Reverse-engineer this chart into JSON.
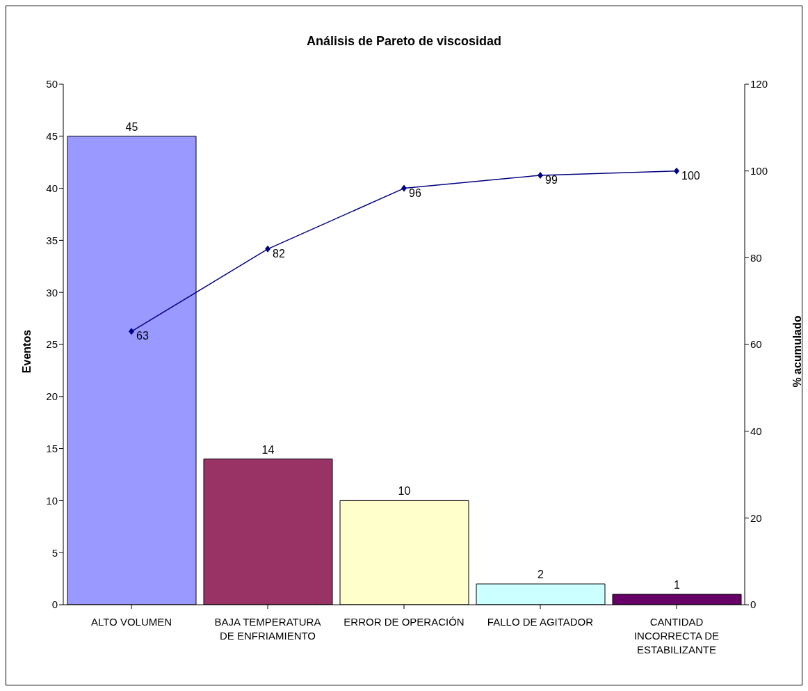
{
  "chart_data": {
    "type": "bar",
    "title": "Análisis de Pareto de viscosidad",
    "ylabel": "Eventos",
    "y2label": "% acumulado",
    "categories": [
      "ALTO VOLUMEN",
      "BAJA TEMPERATURA DE ENFRIAMIENTO",
      "ERROR DE OPERACIÓN",
      "FALLO DE AGITADOR",
      "CANTIDAD INCORRECTA DE ESTABILIZANTE"
    ],
    "series": [
      {
        "values": [
          45,
          14,
          10,
          2,
          1
        ],
        "colors": [
          "#9999ff",
          "#993366",
          "#ffffcc",
          "#ccffff",
          "#660066"
        ]
      },
      {
        "type": "line",
        "axis": "y2",
        "color": "#000080",
        "values": [
          63,
          82,
          96,
          99,
          100
        ]
      }
    ],
    "ylim": [
      0,
      50
    ],
    "yticks": [
      0,
      5,
      10,
      15,
      20,
      25,
      30,
      35,
      40,
      45,
      50
    ],
    "y2lim": [
      0,
      120
    ],
    "y2ticks": [
      0,
      20,
      40,
      60,
      80,
      100,
      120
    ],
    "marker": "diamond",
    "line_style": "solid",
    "data_labels": true,
    "grid": false,
    "legend": false
  }
}
